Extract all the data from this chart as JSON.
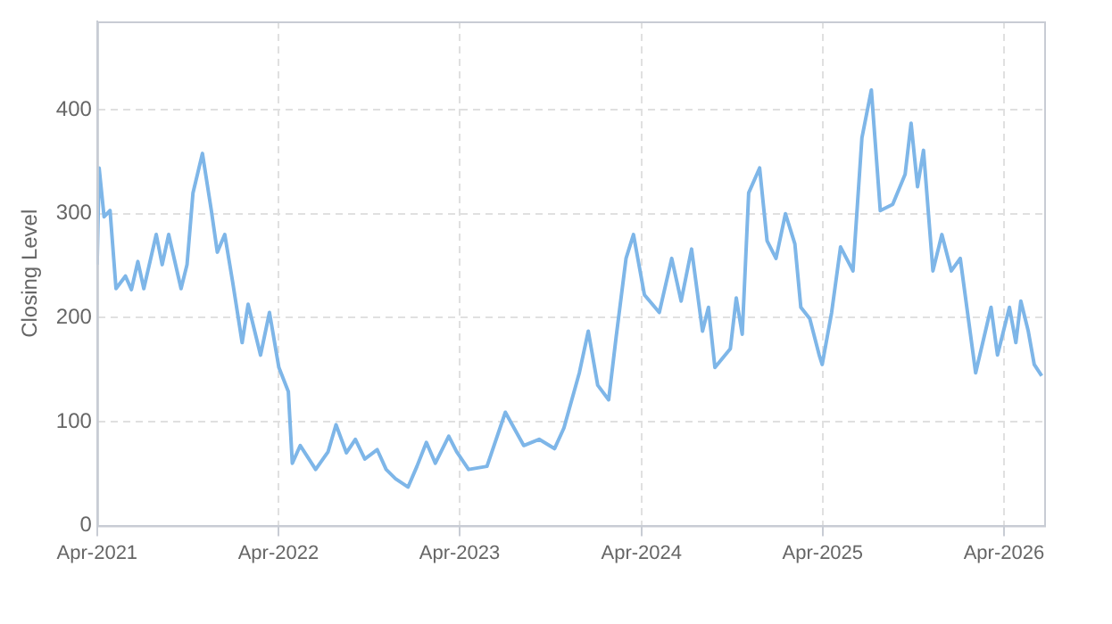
{
  "chart_data": {
    "type": "line",
    "ylabel": "Closing Level",
    "x": [
      "2021-04-01",
      "2021-04-05",
      "2021-04-15",
      "2021-04-27",
      "2021-05-09",
      "2021-05-28",
      "2021-06-09",
      "2021-06-22",
      "2021-07-04",
      "2021-07-29",
      "2021-08-10",
      "2021-08-23",
      "2021-09-17",
      "2021-09-29",
      "2021-10-11",
      "2021-10-30",
      "2021-11-17",
      "2021-11-29",
      "2021-12-14",
      "2021-12-30",
      "2022-01-18",
      "2022-01-30",
      "2022-02-24",
      "2022-03-14",
      "2022-04-02",
      "2022-04-21",
      "2022-04-29",
      "2022-05-15",
      "2022-06-15",
      "2022-07-10",
      "2022-07-26",
      "2022-08-16",
      "2022-09-03",
      "2022-09-22",
      "2022-10-17",
      "2022-11-04",
      "2022-11-23",
      "2022-12-18",
      "2023-01-05",
      "2023-01-24",
      "2023-02-11",
      "2023-03-10",
      "2023-03-26",
      "2023-04-19",
      "2023-05-26",
      "2023-07-02",
      "2023-08-08",
      "2023-09-08",
      "2023-10-09",
      "2023-10-28",
      "2023-11-28",
      "2023-12-16",
      "2024-01-04",
      "2024-01-26",
      "2024-02-10",
      "2024-03-01",
      "2024-03-16",
      "2024-04-07",
      "2024-05-07",
      "2024-06-01",
      "2024-06-20",
      "2024-07-11",
      "2024-08-02",
      "2024-08-14",
      "2024-08-27",
      "2024-09-27",
      "2024-10-09",
      "2024-10-21",
      "2024-11-03",
      "2024-11-25",
      "2024-12-10",
      "2024-12-28",
      "2025-01-16",
      "2025-02-04",
      "2025-02-16",
      "2025-03-06",
      "2025-03-25",
      "2025-03-31",
      "2025-04-19",
      "2025-05-07",
      "2025-06-01",
      "2025-06-19",
      "2025-07-08",
      "2025-07-26",
      "2025-08-20",
      "2025-09-14",
      "2025-09-26",
      "2025-10-09",
      "2025-10-21",
      "2025-11-09",
      "2025-11-27",
      "2025-12-16",
      "2026-01-03",
      "2026-02-03",
      "2026-03-06",
      "2026-03-19",
      "2026-04-12",
      "2026-04-25",
      "2026-05-05",
      "2026-05-20",
      "2026-06-01",
      "2026-06-16"
    ],
    "series": [
      {
        "color": "#7eb6e8",
        "values": [
          251,
          344,
          297,
          303,
          228,
          240,
          227,
          254,
          228,
          280,
          251,
          280,
          228,
          251,
          320,
          358,
          303,
          263,
          280,
          234,
          176,
          213,
          164,
          205,
          152,
          129,
          60,
          77,
          54,
          71,
          97,
          70,
          83,
          64,
          73,
          54,
          45,
          37,
          57,
          80,
          60,
          86,
          71,
          54,
          57,
          109,
          77,
          83,
          74,
          94,
          147,
          187,
          135,
          121,
          181,
          257,
          280,
          222,
          205,
          257,
          216,
          266,
          187,
          210,
          152,
          170,
          219,
          184,
          320,
          344,
          274,
          257,
          300,
          271,
          210,
          199,
          164,
          155,
          205,
          268,
          245,
          373,
          419,
          303,
          309,
          338,
          387,
          326,
          361,
          245,
          280,
          245,
          257,
          147,
          210,
          164,
          210,
          176,
          216,
          187,
          155,
          144
        ]
      }
    ],
    "xlim": [
      "2021-04-01",
      "2026-06-21"
    ],
    "xticks": [
      {
        "value": "2021-04-01",
        "label": "Apr-2021"
      },
      {
        "value": "2022-04-01",
        "label": "Apr-2022"
      },
      {
        "value": "2023-04-01",
        "label": "Apr-2023"
      },
      {
        "value": "2024-04-01",
        "label": "Apr-2024"
      },
      {
        "value": "2025-04-01",
        "label": "Apr-2025"
      },
      {
        "value": "2026-04-01",
        "label": "Apr-2026"
      }
    ],
    "ylim": [
      0,
      485
    ],
    "yticks": [
      0,
      100,
      200,
      300,
      400
    ],
    "grid": true,
    "legend": false,
    "marker": "none",
    "line_style": "solid"
  }
}
